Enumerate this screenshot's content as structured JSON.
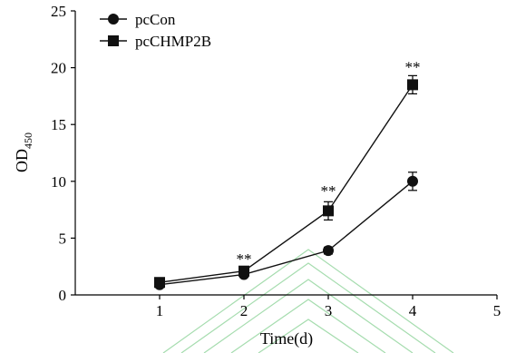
{
  "chart_data": {
    "type": "line",
    "x": [
      1,
      2,
      3,
      4
    ],
    "xlabel": "Time(d)",
    "ylabel": "OD",
    "ylabel_sub": "450",
    "xlim": [
      0,
      5
    ],
    "ylim": [
      0,
      25
    ],
    "xticks": [
      1,
      2,
      3,
      4,
      5
    ],
    "yticks": [
      0,
      5,
      10,
      15,
      20,
      25
    ],
    "grid": false,
    "legend_position": "top-left",
    "series": [
      {
        "name": "pcCon",
        "marker": "circle",
        "values": [
          0.9,
          1.8,
          3.9,
          10.0
        ],
        "errors": [
          0.2,
          0.2,
          0.3,
          0.8
        ]
      },
      {
        "name": "pcCHMP2B",
        "marker": "square",
        "values": [
          1.1,
          2.1,
          7.4,
          18.5
        ],
        "errors": [
          0.2,
          0.2,
          0.8,
          0.8
        ]
      }
    ],
    "annotations": [
      {
        "x": 2,
        "y": 3.2,
        "text": "**"
      },
      {
        "x": 3,
        "y": 9.2,
        "text": "**"
      },
      {
        "x": 4,
        "y": 20.1,
        "text": "**"
      }
    ]
  }
}
